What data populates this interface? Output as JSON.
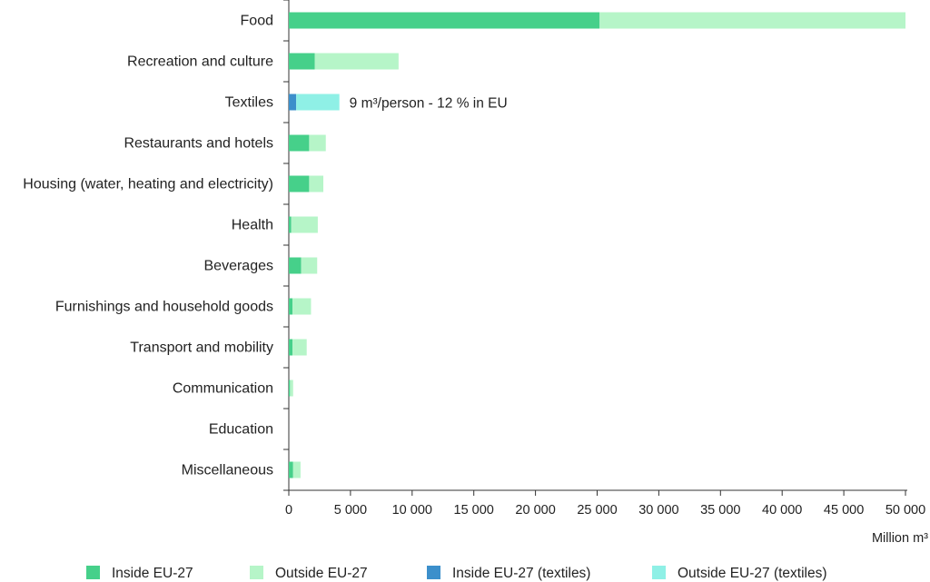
{
  "chart_data": {
    "type": "bar",
    "orientation": "horizontal",
    "stacked": true,
    "categories": [
      "Food",
      "Recreation and culture",
      "Textiles",
      "Restaurants and hotels",
      "Housing (water, heating and electricity)",
      "Health",
      "Beverages",
      "Furnishings and household goods",
      "Transport and mobility",
      "Communication",
      "Education",
      "Miscellaneous"
    ],
    "series": [
      {
        "name": "Inside EU-27",
        "color": "#46d08a",
        "values": [
          25200,
          2100,
          0,
          1650,
          1650,
          200,
          1000,
          300,
          300,
          100,
          0,
          350
        ]
      },
      {
        "name": "Outside EU-27",
        "color": "#b6f5c8",
        "values": [
          24800,
          6800,
          0,
          1350,
          1150,
          2150,
          1300,
          1500,
          1150,
          250,
          0,
          600
        ]
      },
      {
        "name": "Inside EU-27 (textiles)",
        "color": "#3c8fcb",
        "values": [
          0,
          0,
          600,
          0,
          0,
          0,
          0,
          0,
          0,
          0,
          0,
          0
        ]
      },
      {
        "name": "Outside EU-27 (textiles)",
        "color": "#8ff0e6",
        "values": [
          0,
          0,
          3500,
          0,
          0,
          0,
          0,
          0,
          0,
          0,
          0,
          0
        ]
      }
    ],
    "x_ticks": [
      0,
      5000,
      10000,
      15000,
      20000,
      25000,
      30000,
      35000,
      40000,
      45000,
      50000
    ],
    "x_tick_labels": [
      "0",
      "5 000",
      "10 000",
      "15 000",
      "20 000",
      "25 000",
      "30 000",
      "35 000",
      "40 000",
      "45 000",
      "50 000"
    ],
    "xlim": [
      0,
      50000
    ],
    "xlabel": "Million m³",
    "ylabel": "",
    "title": "",
    "grid": false,
    "legend_position": "bottom",
    "annotations": [
      {
        "category": "Textiles",
        "text": "9 m³/person - 12 % in EU"
      }
    ]
  }
}
